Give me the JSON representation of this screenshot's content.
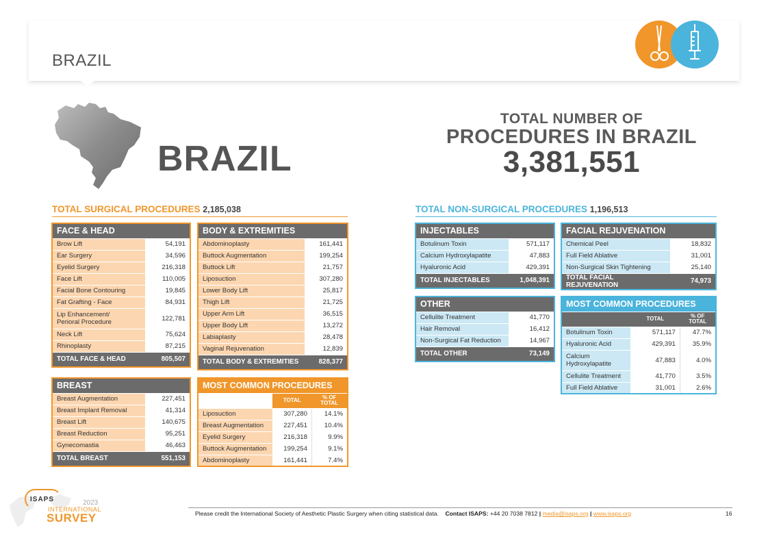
{
  "header": {
    "title": "BRAZIL"
  },
  "country_title": "BRAZIL",
  "total": {
    "line1": "TOTAL NUMBER OF",
    "line2": "PROCEDURES IN BRAZIL",
    "value": "3,381,551"
  },
  "surgical": {
    "label": "TOTAL SURGICAL PROCEDURES",
    "value": "2,185,038",
    "face_head": {
      "title": "FACE & HEAD",
      "rows": [
        {
          "label": "Brow Lift",
          "value": "54,191"
        },
        {
          "label": "Ear Surgery",
          "value": "34,596"
        },
        {
          "label": "Eyelid Surgery",
          "value": "216,318"
        },
        {
          "label": "Face Lift",
          "value": "110,005"
        },
        {
          "label": "Facial Bone Contouring",
          "value": "19,845"
        },
        {
          "label": "Fat Grafting - Face",
          "value": "84,931"
        },
        {
          "label": "Lip Enhancement/",
          "label2": "Perioral Procedure",
          "value": "122,781"
        },
        {
          "label": "Neck Lift",
          "value": "75,624"
        },
        {
          "label": "Rhinoplasty",
          "value": "87,215"
        }
      ],
      "total_label": "TOTAL FACE & HEAD",
      "total_value": "805,507"
    },
    "body": {
      "title": "BODY & EXTREMITIES",
      "rows": [
        {
          "label": "Abdominoplasty",
          "value": "161,441"
        },
        {
          "label": "Buttock Augmentation",
          "value": "199,254"
        },
        {
          "label": "Buttock Lift",
          "value": "21,757"
        },
        {
          "label": "Liposuction",
          "value": "307,280"
        },
        {
          "label": "Lower Body Lift",
          "value": "25,817"
        },
        {
          "label": "Thigh Lift",
          "value": "21,725"
        },
        {
          "label": "Upper Arm Lift",
          "value": "36,515"
        },
        {
          "label": "Upper Body Lift",
          "value": "13,272"
        },
        {
          "label": "Labiaplasty",
          "value": "28,478"
        },
        {
          "label": "Vaginal Rejuvenation",
          "value": "12,839"
        }
      ],
      "total_label": "TOTAL BODY & EXTREMITIES",
      "total_value": "828,377"
    },
    "breast": {
      "title": "BREAST",
      "rows": [
        {
          "label": "Breast Augmentation",
          "value": "227,451"
        },
        {
          "label": "Breast Implant Removal",
          "value": "41,314"
        },
        {
          "label": "Breast Lift",
          "value": "140,675"
        },
        {
          "label": "Breast Reduction",
          "value": "95,251"
        },
        {
          "label": "Gynecomastia",
          "value": "46,463"
        }
      ],
      "total_label": "TOTAL BREAST",
      "total_value": "551,153"
    },
    "most_common": {
      "title": "MOST COMMON PROCEDURES",
      "col_total": "TOTAL",
      "col_pct1": "% OF",
      "col_pct2": "TOTAL",
      "rows": [
        {
          "label": "Liposuction",
          "value": "307,280",
          "pct": "14.1%"
        },
        {
          "label": "Breast Augmentation",
          "value": "227,451",
          "pct": "10.4%"
        },
        {
          "label": "Eyelid Surgery",
          "value": "216,318",
          "pct": "9.9%"
        },
        {
          "label": "Buttock Augmentation",
          "value": "199,254",
          "pct": "9.1%"
        },
        {
          "label": "Abdominoplasty",
          "value": "161,441",
          "pct": "7.4%"
        }
      ]
    }
  },
  "nonsurgical": {
    "label": "TOTAL NON-SURGICAL PROCEDURES",
    "value": "1,196,513",
    "injectables": {
      "title": "INJECTABLES",
      "rows": [
        {
          "label": "Botulinum Toxin",
          "value": "571,117"
        },
        {
          "label": "Calcium Hydroxylapatite",
          "value": "47,883"
        },
        {
          "label": "Hyaluronic Acid",
          "value": "429,391"
        }
      ],
      "total_label": "TOTAL INJECTABLES",
      "total_value": "1,048,391"
    },
    "facial": {
      "title": "FACIAL REJUVENATION",
      "rows": [
        {
          "label": "Chemical Peel",
          "value": "18,832"
        },
        {
          "label": "Full Field Ablative",
          "value": "31,001"
        },
        {
          "label": "Non-Surgical Skin Tightening",
          "value": "25,140"
        }
      ],
      "total_label": "TOTAL FACIAL REJUVENATION",
      "total_value": "74,973"
    },
    "other": {
      "title": "OTHER",
      "rows": [
        {
          "label": "Cellulite Treatment",
          "value": "41,770"
        },
        {
          "label": "Hair Removal",
          "value": "16,412"
        },
        {
          "label": "Non-Surgical Fat Reduction",
          "value": "14,967"
        }
      ],
      "total_label": "TOTAL OTHER",
      "total_value": "73,149"
    },
    "most_common": {
      "title": "MOST COMMON PROCEDURES",
      "col_total": "TOTAL",
      "col_pct1": "% OF",
      "col_pct2": "TOTAL",
      "rows": [
        {
          "label": "Botulinum Toxin",
          "value": "571,117",
          "pct": "47.7%"
        },
        {
          "label": "Hyaluronic Acid",
          "value": "429,391",
          "pct": "35.9%"
        },
        {
          "label": "Calcium",
          "label2": "Hydroxylapatite",
          "value": "47,883",
          "pct": "4.0%"
        },
        {
          "label": "Cellulite Treatment",
          "value": "41,770",
          "pct": "3.5%"
        },
        {
          "label": "Full Field Ablative",
          "value": "31,001",
          "pct": "2.6%"
        }
      ]
    }
  },
  "footer": {
    "credit": "Please credit the International Society of Aesthetic Plastic Surgery when citing statistical data.",
    "contact_label": "Contact ISAPS:",
    "phone": "+44 20 7038 7812",
    "sep": "|",
    "email": "media@isaps.org",
    "website": "www.isaps.org",
    "page": "16"
  },
  "logo": {
    "isaps": "ISAPS",
    "year": "2023",
    "international": "INTERNATIONAL",
    "survey": "SURVEY"
  },
  "colors": {
    "orange": "#f0962a",
    "blue": "#4ab4dc",
    "dark_gray": "#6b6b6b"
  },
  "icons": [
    "scissors-icon",
    "syringe-icon",
    "brazil-map-icon"
  ]
}
